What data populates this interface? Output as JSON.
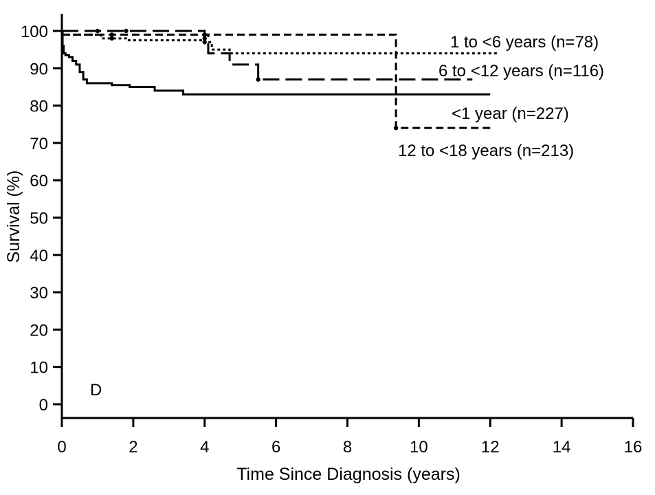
{
  "chart_data": {
    "type": "line",
    "step": true,
    "title": "",
    "panel_letter": "D",
    "xlabel": "Time Since Diagnosis (years)",
    "ylabel": "Survival (%)",
    "xlim": [
      0,
      16
    ],
    "ylim": [
      0,
      100
    ],
    "x_ticks": [
      0,
      2,
      4,
      6,
      8,
      10,
      12,
      14,
      16
    ],
    "y_ticks": [
      0,
      10,
      20,
      30,
      40,
      50,
      60,
      70,
      80,
      90,
      100
    ],
    "grid": false,
    "legend": "none (series labelled directly on the plot)",
    "series": [
      {
        "name": "<1 year (n=227)",
        "style": "solid",
        "color": "#000000",
        "points": [
          [
            0,
            100
          ],
          [
            0.02,
            96
          ],
          [
            0.05,
            94
          ],
          [
            0.1,
            93.5
          ],
          [
            0.2,
            93
          ],
          [
            0.3,
            92
          ],
          [
            0.4,
            91
          ],
          [
            0.5,
            89
          ],
          [
            0.6,
            87
          ],
          [
            0.7,
            86
          ],
          [
            1.4,
            85.5
          ],
          [
            1.9,
            85
          ],
          [
            2.6,
            84
          ],
          [
            3.4,
            83
          ],
          [
            12.0,
            83
          ]
        ],
        "censored": []
      },
      {
        "name": "1 to <6 years (n=78)",
        "style": "dotted",
        "color": "#000000",
        "points": [
          [
            0,
            99
          ],
          [
            1.1,
            98
          ],
          [
            1.8,
            97.5
          ],
          [
            4.0,
            97
          ],
          [
            4.2,
            95
          ],
          [
            4.7,
            94
          ],
          [
            12.2,
            94
          ]
        ],
        "censored": [
          [
            1.4,
            98
          ],
          [
            4.0,
            97
          ]
        ]
      },
      {
        "name": "6 to <12 years (n=116)",
        "style": "long-dash",
        "color": "#000000",
        "points": [
          [
            0,
            100
          ],
          [
            4.0,
            99
          ],
          [
            4.1,
            94
          ],
          [
            4.7,
            91
          ],
          [
            5.5,
            87
          ],
          [
            11.5,
            87
          ]
        ],
        "censored": [
          [
            1.0,
            100
          ],
          [
            1.8,
            100
          ],
          [
            4.0,
            99
          ],
          [
            5.5,
            87
          ]
        ]
      },
      {
        "name": "12 to <18 years (n=213)",
        "style": "dashed",
        "color": "#000000",
        "points": [
          [
            0,
            99
          ],
          [
            9.35,
            99
          ],
          [
            9.36,
            74
          ],
          [
            12.0,
            74
          ]
        ],
        "censored": [
          [
            1.4,
            99
          ],
          [
            4.0,
            98
          ],
          [
            9.36,
            74
          ]
        ]
      }
    ]
  }
}
